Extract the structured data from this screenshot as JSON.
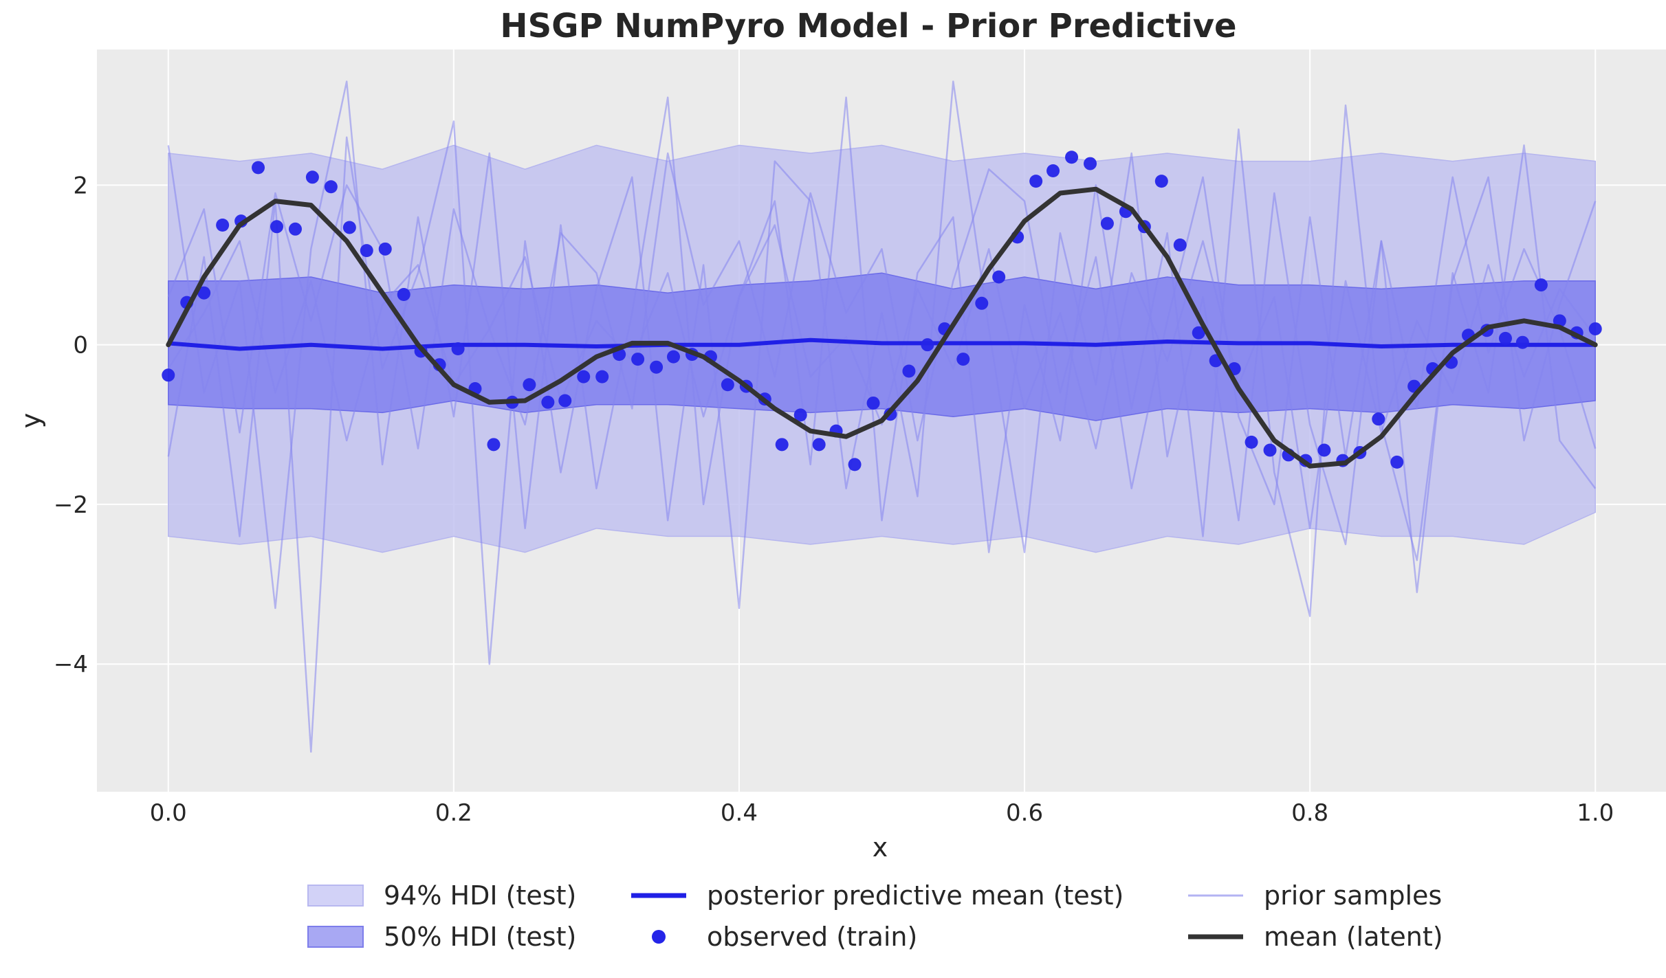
{
  "chart_data": {
    "type": "line",
    "title": "HSGP NumPyro Model - Prior Predictive",
    "xlabel": "x",
    "ylabel": "y",
    "xlim": [
      -0.05,
      1.05
    ],
    "ylim": [
      -5.6,
      3.7
    ],
    "x_ticks": [
      0.0,
      0.2,
      0.4,
      0.6,
      0.8,
      1.0
    ],
    "x_tick_labels": [
      "0.0",
      "0.2",
      "0.4",
      "0.6",
      "0.8",
      "1.0"
    ],
    "y_ticks": [
      -4,
      -2,
      0,
      2
    ],
    "y_tick_labels": [
      "−4",
      "−2",
      "0",
      "2"
    ],
    "grid": true,
    "legend_placement": "bottom-center",
    "colors": {
      "hdi94": "#c2c2f0",
      "hdi50": "#8080ee",
      "posterior_mean": "#2020e6",
      "observed": "#2525e8",
      "prior_samples": "#8585ee",
      "latent_mean": "#333333",
      "plot_bg": "#ebebeb",
      "grid": "#ffffff"
    },
    "legend": [
      {
        "label": "94% HDI (test)",
        "kind": "patch",
        "color": "#d2d2f7"
      },
      {
        "label": "50% HDI (test)",
        "kind": "patch",
        "color": "#a8a8f3"
      },
      {
        "label": "posterior predictive mean (test)",
        "kind": "line",
        "color": "#2020e6"
      },
      {
        "label": "observed (train)",
        "kind": "marker",
        "color": "#2525e8"
      },
      {
        "label": "prior samples",
        "kind": "thinline",
        "color": "#b3b3f3"
      },
      {
        "label": "mean (latent)",
        "kind": "line",
        "color": "#333333"
      }
    ],
    "hdi94": {
      "x": [
        0.0,
        0.05,
        0.1,
        0.15,
        0.2,
        0.25,
        0.3,
        0.35,
        0.4,
        0.45,
        0.5,
        0.55,
        0.6,
        0.65,
        0.7,
        0.75,
        0.8,
        0.85,
        0.9,
        0.95,
        1.0
      ],
      "upper": [
        2.4,
        2.3,
        2.4,
        2.2,
        2.5,
        2.2,
        2.5,
        2.3,
        2.5,
        2.4,
        2.5,
        2.3,
        2.4,
        2.3,
        2.4,
        2.3,
        2.3,
        2.4,
        2.3,
        2.4,
        2.3
      ],
      "lower": [
        -2.4,
        -2.5,
        -2.4,
        -2.6,
        -2.4,
        -2.6,
        -2.3,
        -2.4,
        -2.4,
        -2.5,
        -2.4,
        -2.5,
        -2.4,
        -2.6,
        -2.4,
        -2.5,
        -2.3,
        -2.4,
        -2.4,
        -2.5,
        -2.1
      ]
    },
    "hdi50": {
      "x": [
        0.0,
        0.05,
        0.1,
        0.15,
        0.2,
        0.25,
        0.3,
        0.35,
        0.4,
        0.45,
        0.5,
        0.55,
        0.6,
        0.65,
        0.7,
        0.75,
        0.8,
        0.85,
        0.9,
        0.95,
        1.0
      ],
      "upper": [
        0.8,
        0.8,
        0.85,
        0.65,
        0.75,
        0.7,
        0.75,
        0.65,
        0.75,
        0.8,
        0.9,
        0.7,
        0.85,
        0.7,
        0.85,
        0.75,
        0.75,
        0.7,
        0.75,
        0.8,
        0.8
      ],
      "lower": [
        -0.75,
        -0.8,
        -0.8,
        -0.85,
        -0.7,
        -0.85,
        -0.75,
        -0.75,
        -0.8,
        -0.85,
        -0.8,
        -0.9,
        -0.8,
        -0.95,
        -0.8,
        -0.85,
        -0.8,
        -0.85,
        -0.75,
        -0.8,
        -0.7
      ]
    },
    "posterior_mean": {
      "x": [
        0.0,
        0.05,
        0.1,
        0.15,
        0.2,
        0.25,
        0.3,
        0.35,
        0.4,
        0.45,
        0.5,
        0.55,
        0.6,
        0.65,
        0.7,
        0.75,
        0.8,
        0.85,
        0.9,
        0.95,
        1.0
      ],
      "y": [
        0.02,
        -0.05,
        0.0,
        -0.05,
        0.0,
        0.0,
        -0.02,
        0.0,
        0.0,
        0.06,
        0.02,
        0.02,
        0.02,
        0.0,
        0.04,
        0.02,
        0.02,
        -0.02,
        0.0,
        0.0,
        0.0
      ]
    },
    "latent_mean": {
      "x": [
        0.0,
        0.025,
        0.05,
        0.075,
        0.1,
        0.125,
        0.15,
        0.175,
        0.2,
        0.225,
        0.25,
        0.275,
        0.3,
        0.325,
        0.35,
        0.375,
        0.4,
        0.425,
        0.45,
        0.475,
        0.5,
        0.525,
        0.55,
        0.575,
        0.6,
        0.625,
        0.65,
        0.675,
        0.7,
        0.725,
        0.75,
        0.775,
        0.8,
        0.825,
        0.85,
        0.875,
        0.9,
        0.925,
        0.95,
        0.975,
        1.0
      ],
      "y": [
        0.0,
        0.85,
        1.5,
        1.8,
        1.75,
        1.3,
        0.65,
        0.0,
        -0.5,
        -0.72,
        -0.7,
        -0.45,
        -0.15,
        0.02,
        0.02,
        -0.15,
        -0.45,
        -0.8,
        -1.08,
        -1.15,
        -0.95,
        -0.45,
        0.25,
        0.95,
        1.55,
        1.9,
        1.95,
        1.7,
        1.1,
        0.25,
        -0.55,
        -1.2,
        -1.52,
        -1.48,
        -1.15,
        -0.6,
        -0.1,
        0.22,
        0.3,
        0.22,
        0.0
      ]
    },
    "observed": {
      "x": [
        0.0,
        0.013,
        0.025,
        0.038,
        0.051,
        0.063,
        0.076,
        0.089,
        0.101,
        0.114,
        0.127,
        0.139,
        0.152,
        0.165,
        0.177,
        0.19,
        0.203,
        0.215,
        0.228,
        0.241,
        0.253,
        0.266,
        0.278,
        0.291,
        0.304,
        0.316,
        0.329,
        0.342,
        0.354,
        0.367,
        0.38,
        0.392,
        0.405,
        0.418,
        0.43,
        0.443,
        0.456,
        0.468,
        0.481,
        0.494,
        0.506,
        0.519,
        0.532,
        0.544,
        0.557,
        0.57,
        0.582,
        0.595,
        0.608,
        0.62,
        0.633,
        0.646,
        0.658,
        0.671,
        0.684,
        0.696,
        0.709,
        0.722,
        0.734,
        0.747,
        0.759,
        0.772,
        0.785,
        0.797,
        0.81,
        0.823,
        0.835,
        0.848,
        0.861,
        0.873,
        0.886,
        0.899,
        0.911,
        0.924,
        0.937,
        0.949,
        0.962,
        0.975,
        0.987,
        1.0
      ],
      "y": [
        -0.38,
        0.53,
        0.65,
        1.5,
        1.55,
        2.22,
        1.48,
        1.45,
        2.1,
        1.98,
        1.47,
        1.18,
        1.2,
        0.63,
        -0.08,
        -0.25,
        -0.05,
        -0.55,
        -1.25,
        -0.72,
        -0.5,
        -0.72,
        -0.7,
        -0.4,
        -0.4,
        -0.12,
        -0.18,
        -0.28,
        -0.15,
        -0.12,
        -0.15,
        -0.5,
        -0.52,
        -0.68,
        -1.25,
        -0.88,
        -1.25,
        -1.08,
        -1.5,
        -0.73,
        -0.87,
        -0.33,
        0.0,
        0.2,
        -0.18,
        0.52,
        0.85,
        1.35,
        2.05,
        2.18,
        2.35,
        2.27,
        1.52,
        1.67,
        1.48,
        2.05,
        1.25,
        0.15,
        -0.2,
        -0.3,
        -1.22,
        -1.32,
        -1.38,
        -1.45,
        -1.32,
        -1.45,
        -1.35,
        -0.93,
        -1.47,
        -0.52,
        -0.3,
        -0.22,
        0.12,
        0.18,
        0.08,
        0.03,
        0.75,
        0.3,
        0.15,
        0.2
      ]
    },
    "prior_samples": [
      {
        "x": [
          0.0,
          0.025,
          0.05,
          0.075,
          0.1,
          0.125,
          0.15,
          0.175,
          0.2,
          0.225,
          0.25,
          0.275,
          0.3,
          0.325,
          0.35,
          0.375,
          0.4,
          0.425,
          0.45,
          0.475,
          0.5,
          0.525,
          0.55,
          0.575,
          0.6,
          0.625,
          0.65,
          0.675,
          0.7,
          0.725,
          0.75,
          0.775,
          0.8,
          0.825,
          0.85,
          0.875,
          0.9,
          0.925,
          0.95,
          0.975,
          1.0
        ],
        "y": [
          2.5,
          -0.6,
          0.8,
          -3.3,
          1.2,
          3.3,
          -1.5,
          1.6,
          -0.9,
          2.4,
          -2.3,
          1.5,
          -1.8,
          0.4,
          3.1,
          -2.0,
          0.6,
          1.8,
          -1.5,
          3.1,
          -2.2,
          0.9,
          1.6,
          -2.6,
          0.5,
          -1.2,
          2.0,
          -0.8,
          1.4,
          -2.4,
          2.7,
          -1.6,
          -3.4,
          3.0,
          -1.0,
          -2.7,
          0.8,
          2.1,
          -1.2,
          0.5,
          1.8
        ]
      },
      {
        "x": [
          0.0,
          0.025,
          0.05,
          0.075,
          0.1,
          0.125,
          0.15,
          0.175,
          0.2,
          0.225,
          0.25,
          0.275,
          0.3,
          0.325,
          0.35,
          0.375,
          0.4,
          0.425,
          0.45,
          0.475,
          0.5,
          0.525,
          0.55,
          0.575,
          0.6,
          0.625,
          0.65,
          0.675,
          0.7,
          0.725,
          0.75,
          0.775,
          0.8,
          0.825,
          0.85,
          0.875,
          0.9,
          0.925,
          0.95,
          0.975,
          1.0
        ],
        "y": [
          -1.4,
          1.1,
          -2.4,
          1.8,
          -5.1,
          2.6,
          -0.3,
          0.9,
          2.8,
          -4.0,
          1.3,
          -1.6,
          0.7,
          2.1,
          -2.2,
          1.0,
          -3.3,
          2.3,
          1.8,
          -1.8,
          0.4,
          -1.9,
          3.3,
          0.2,
          -2.6,
          1.4,
          -0.5,
          2.4,
          -1.4,
          0.6,
          -2.2,
          1.9,
          -1.0,
          -2.5,
          1.3,
          -3.1,
          0.9,
          -0.6,
          2.5,
          -1.2,
          -1.8
        ]
      },
      {
        "x": [
          0.0,
          0.025,
          0.05,
          0.075,
          0.1,
          0.125,
          0.15,
          0.175,
          0.2,
          0.225,
          0.25,
          0.275,
          0.3,
          0.325,
          0.35,
          0.375,
          0.4,
          0.425,
          0.45,
          0.475,
          0.5,
          0.525,
          0.55,
          0.575,
          0.6,
          0.625,
          0.65,
          0.675,
          0.7,
          0.725,
          0.75,
          0.775,
          0.8,
          0.825,
          0.85,
          0.875,
          0.9,
          0.925,
          0.95,
          0.975,
          1.0
        ],
        "y": [
          0.6,
          1.7,
          -1.1,
          1.9,
          0.3,
          2.0,
          1.2,
          -1.3,
          1.7,
          0.2,
          -1.0,
          1.4,
          0.9,
          -0.8,
          2.4,
          0.5,
          1.3,
          -0.4,
          1.9,
          0.4,
          1.2,
          -1.2,
          0.8,
          2.2,
          1.8,
          -0.6,
          1.1,
          -1.8,
          0.3,
          2.1,
          -0.9,
          -2.0,
          1.6,
          -1.4,
          1.3,
          -0.8,
          2.1,
          -0.1,
          1.2,
          0.2,
          -1.3
        ]
      },
      {
        "x": [
          0.0,
          0.025,
          0.05,
          0.075,
          0.1,
          0.125,
          0.15,
          0.175,
          0.2,
          0.225,
          0.25,
          0.275,
          0.3,
          0.325,
          0.35,
          0.375,
          0.4,
          0.425,
          0.45,
          0.475,
          0.5,
          0.525,
          0.55,
          0.575,
          0.6,
          0.625,
          0.65,
          0.675,
          0.7,
          0.725,
          0.75,
          0.775,
          0.8,
          0.825,
          0.85,
          0.875,
          0.9,
          0.925,
          0.95,
          0.975,
          1.0
        ],
        "y": [
          -0.3,
          0.4,
          1.3,
          -0.6,
          0.8,
          -1.2,
          0.5,
          1.0,
          -0.5,
          0.2,
          1.1,
          -0.7,
          0.3,
          -0.2,
          0.9,
          -0.9,
          0.6,
          1.5,
          -0.4,
          0.1,
          -1.0,
          0.7,
          -0.3,
          1.2,
          -0.8,
          0.4,
          -1.3,
          0.9,
          -0.2,
          1.3,
          -0.5,
          0.6,
          -2.3,
          0.8,
          -1.1,
          0.3,
          -0.6,
          1.0,
          -0.4,
          0.7,
          0.1
        ]
      }
    ]
  }
}
